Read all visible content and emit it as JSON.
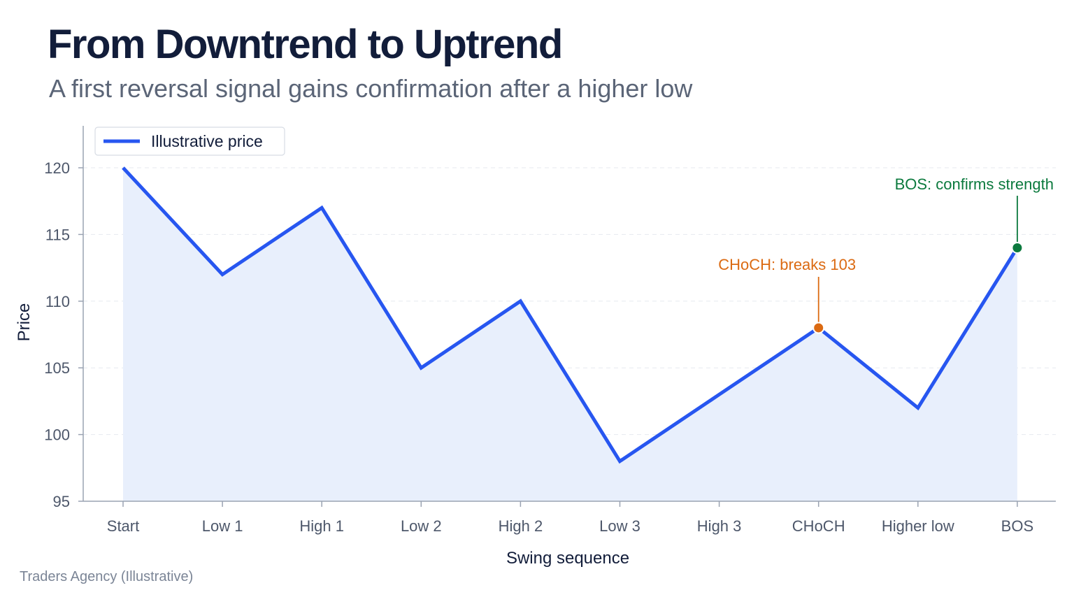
{
  "title": "From Downtrend to Uptrend",
  "subtitle": "A first reversal signal gains confirmation after a higher low",
  "footer": "Traders Agency (Illustrative)",
  "colors": {
    "line": "#2756f0",
    "area": "#e8effc",
    "choch": "#db6a12",
    "bos": "#0c7a3e",
    "axis": "#9aa3b2",
    "grid": "#e6e9ef"
  },
  "chart_data": {
    "type": "line",
    "title": "From Downtrend to Uptrend",
    "xlabel": "Swing sequence",
    "ylabel": "Price",
    "categories": [
      "Start",
      "Low 1",
      "High 1",
      "Low 2",
      "High 2",
      "Low 3",
      "High 3",
      "CHoCH",
      "Higher low",
      "BOS"
    ],
    "series": [
      {
        "name": "Illustrative price",
        "values": [
          120,
          112,
          117,
          105,
          110,
          98,
          103,
          108,
          102,
          114
        ]
      }
    ],
    "ylim": [
      95,
      122
    ],
    "yticks": [
      95,
      100,
      105,
      110,
      115,
      120
    ],
    "grid": true,
    "legend": "top-left",
    "area_fill": true,
    "annotations": [
      {
        "category": "CHoCH",
        "value": 108,
        "text": "CHoCH: breaks 103",
        "color": "#db6a12"
      },
      {
        "category": "BOS",
        "value": 114,
        "text": "BOS: confirms strength",
        "color": "#0c7a3e"
      }
    ]
  }
}
